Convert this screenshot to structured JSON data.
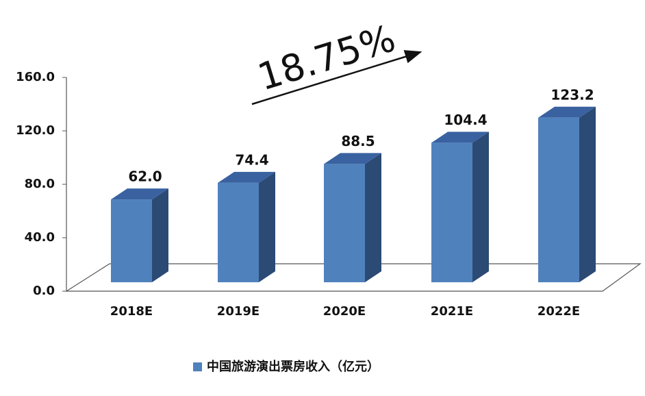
{
  "chart_data": {
    "type": "bar3d",
    "annotation": "18.75%",
    "categories": [
      "2018E",
      "2019E",
      "2020E",
      "2021E",
      "2022E"
    ],
    "series": [
      {
        "name": "中国旅游演出票房收入（亿元）",
        "color": "#4f81bd",
        "values": [
          62.0,
          74.4,
          88.5,
          104.4,
          123.2
        ],
        "value_labels": [
          "62.0",
          "74.4",
          "88.5",
          "104.4",
          "123.2"
        ]
      }
    ],
    "ylim": [
      0,
      160
    ],
    "yticks": [
      {
        "value": 0,
        "label": "0.0"
      },
      {
        "value": 40,
        "label": "40.0"
      },
      {
        "value": 80,
        "label": "80.0"
      },
      {
        "value": 120,
        "label": "120.0"
      },
      {
        "value": 160,
        "label": "160.0"
      }
    ]
  }
}
